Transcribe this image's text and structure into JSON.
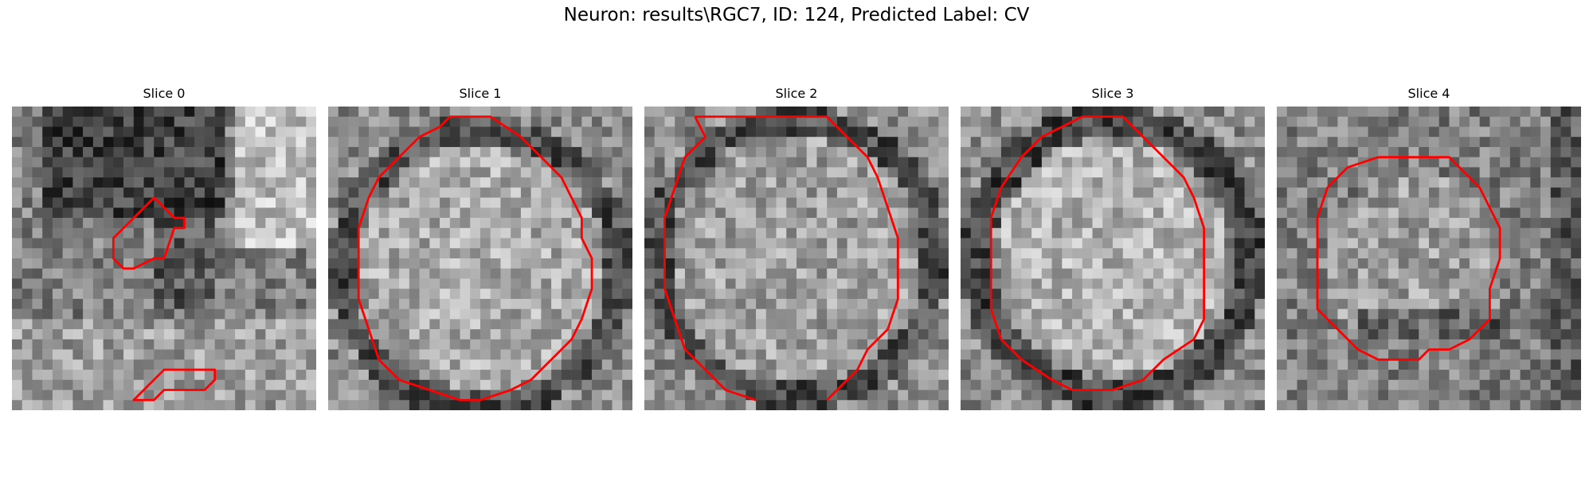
{
  "figure": {
    "title": "Neuron: results\\RGC7, ID: 124, Predicted Label: CV",
    "contour_color": "#ff0000",
    "colormap": "gray"
  },
  "panels": [
    {
      "title": "Slice 0",
      "contours": [
        [
          [
            14,
            9
          ],
          [
            16,
            11
          ],
          [
            17,
            11
          ],
          [
            17,
            12
          ],
          [
            16,
            12
          ],
          [
            15,
            15
          ],
          [
            14,
            15
          ],
          [
            12,
            16
          ],
          [
            11,
            16
          ],
          [
            10,
            15
          ],
          [
            10,
            13
          ],
          [
            12,
            11
          ],
          [
            13,
            10
          ],
          [
            14,
            9
          ]
        ],
        [
          [
            17,
            26
          ],
          [
            20,
            26
          ],
          [
            20,
            27
          ],
          [
            19,
            28
          ],
          [
            15,
            28
          ],
          [
            14,
            29
          ],
          [
            12,
            29
          ],
          [
            14,
            27
          ],
          [
            15,
            26
          ],
          [
            17,
            26
          ]
        ]
      ]
    },
    {
      "title": "Slice 1",
      "contours": [
        [
          [
            12,
            1
          ],
          [
            16,
            1
          ],
          [
            19,
            3
          ],
          [
            21,
            5
          ],
          [
            23,
            7
          ],
          [
            24,
            9
          ],
          [
            25,
            11
          ],
          [
            25,
            13
          ],
          [
            26,
            15
          ],
          [
            26,
            18
          ],
          [
            25,
            21
          ],
          [
            24,
            23
          ],
          [
            22,
            25
          ],
          [
            20,
            27
          ],
          [
            18,
            28
          ],
          [
            15,
            29
          ],
          [
            13,
            29
          ],
          [
            10,
            28
          ],
          [
            7,
            27
          ],
          [
            5,
            25
          ],
          [
            4,
            22
          ],
          [
            3,
            19
          ],
          [
            3,
            16
          ],
          [
            3,
            12
          ],
          [
            4,
            9
          ],
          [
            5,
            7
          ],
          [
            7,
            5
          ],
          [
            9,
            3
          ],
          [
            11,
            2
          ],
          [
            12,
            1
          ]
        ]
      ]
    },
    {
      "title": "Slice 2",
      "contours": [
        [
          [
            5,
            1
          ],
          [
            18,
            1
          ],
          [
            20,
            3
          ],
          [
            22,
            5
          ],
          [
            23,
            7
          ],
          [
            24,
            10
          ],
          [
            25,
            13
          ],
          [
            25,
            16
          ],
          [
            25,
            19
          ],
          [
            24,
            22
          ],
          [
            22,
            24
          ],
          [
            21,
            26
          ],
          [
            19,
            28
          ],
          [
            18,
            29
          ]
        ],
        [
          [
            11,
            29
          ],
          [
            8,
            28
          ],
          [
            6,
            26
          ],
          [
            4,
            24
          ],
          [
            3,
            21
          ],
          [
            2,
            18
          ],
          [
            2,
            14
          ],
          [
            2,
            11
          ],
          [
            3,
            8
          ],
          [
            4,
            5
          ],
          [
            6,
            3
          ],
          [
            5,
            1
          ]
        ]
      ]
    },
    {
      "title": "Slice 3",
      "contours": [
        [
          [
            12,
            1
          ],
          [
            16,
            1
          ],
          [
            18,
            3
          ],
          [
            20,
            5
          ],
          [
            22,
            7
          ],
          [
            23,
            9
          ],
          [
            24,
            12
          ],
          [
            24,
            15
          ],
          [
            24,
            18
          ],
          [
            24,
            21
          ],
          [
            23,
            23
          ],
          [
            20,
            25
          ],
          [
            18,
            27
          ],
          [
            15,
            28
          ],
          [
            11,
            28
          ],
          [
            9,
            27
          ],
          [
            6,
            25
          ],
          [
            4,
            23
          ],
          [
            3,
            20
          ],
          [
            3,
            17
          ],
          [
            3,
            14
          ],
          [
            3,
            11
          ],
          [
            4,
            8
          ],
          [
            6,
            5
          ],
          [
            8,
            3
          ],
          [
            10,
            2
          ],
          [
            12,
            1
          ]
        ]
      ]
    },
    {
      "title": "Slice 4",
      "contours": [
        [
          [
            10,
            5
          ],
          [
            17,
            5
          ],
          [
            19,
            7
          ],
          [
            20,
            8
          ],
          [
            21,
            10
          ],
          [
            22,
            12
          ],
          [
            22,
            15
          ],
          [
            21,
            18
          ],
          [
            21,
            21
          ],
          [
            19,
            23
          ],
          [
            17,
            24
          ],
          [
            15,
            24
          ],
          [
            14,
            25
          ],
          [
            10,
            25
          ],
          [
            8,
            24
          ],
          [
            6,
            22
          ],
          [
            4,
            20
          ],
          [
            4,
            17
          ],
          [
            4,
            14
          ],
          [
            4,
            11
          ],
          [
            5,
            8
          ],
          [
            7,
            6
          ],
          [
            10,
            5
          ]
        ]
      ]
    }
  ]
}
